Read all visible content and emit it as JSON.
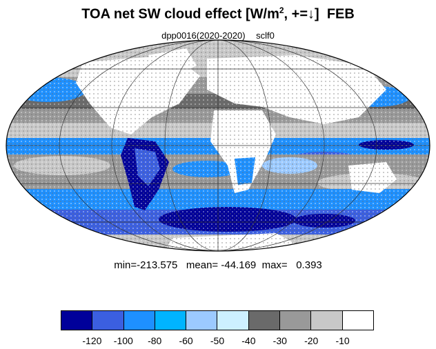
{
  "title": {
    "main_prefix": "TOA net SW cloud effect [W/m",
    "superscript": "2",
    "main_suffix": ", +=↓]",
    "month": "FEB"
  },
  "subtitle": {
    "experiment": "dpp0016(2020-2020)",
    "variable": "sclf0"
  },
  "stats": {
    "min_label": "min=",
    "min": "-213.575",
    "mean_label": "mean=",
    "mean": "-44.169",
    "max_label": "max=",
    "max": "0.393"
  },
  "colorbar": {
    "colors": [
      "#00009a",
      "#3b5fe0",
      "#1e90ff",
      "#00b4ff",
      "#9ccaff",
      "#cdf0ff",
      "#6a6a6a",
      "#999999",
      "#c8c8c8",
      "#ffffff"
    ],
    "tick_labels": [
      "-120",
      "-100",
      "-80",
      "-60",
      "-50",
      "-40",
      "-30",
      "-20",
      "-10"
    ]
  },
  "map": {
    "projection": "Mollweide",
    "colors": {
      "ocean_deep": "#1e90ff",
      "ocean_mid": "#00b4ff",
      "ocean_light": "#9ccaff",
      "cloud_grey_dark": "#6a6a6a",
      "cloud_grey": "#999999",
      "cloud_grey_light": "#c8c8c8",
      "land_clear": "#ffffff",
      "strongest": "#00009a",
      "strong": "#3b5fe0"
    }
  }
}
